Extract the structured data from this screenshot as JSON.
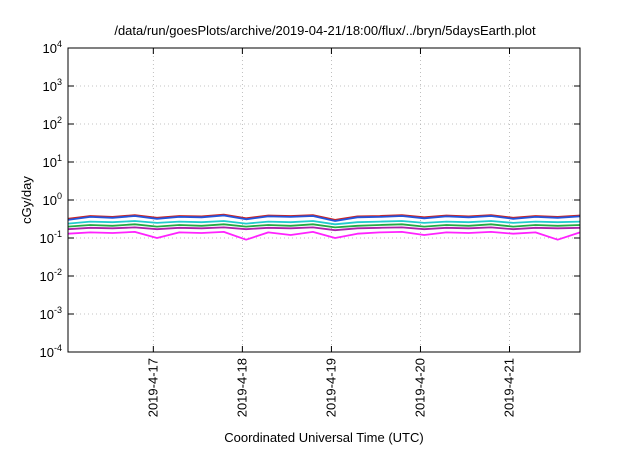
{
  "chart_data": {
    "type": "line",
    "title": "/data/run/goesPlots/archive/2019-04-21/18:00/flux/../bryn/5daysEarth.plot",
    "xlabel": "Coordinated Universal Time (UTC)",
    "ylabel": "cGy/day",
    "y_scale": "log",
    "ylim": [
      0.0001,
      10000
    ],
    "xlim": [
      "2019-04-16 01:00",
      "2019-04-21 19:00"
    ],
    "grid": true,
    "x_ticks": [
      {
        "date": "2019-04-17",
        "label": "2019-4-17"
      },
      {
        "date": "2019-04-18",
        "label": "2019-4-18"
      },
      {
        "date": "2019-04-19",
        "label": "2019-4-19"
      },
      {
        "date": "2019-04-20",
        "label": "2019-4-20"
      },
      {
        "date": "2019-04-21",
        "label": "2019-4-21"
      }
    ],
    "y_ticks": [
      {
        "value": 0.0001,
        "base": "10",
        "exp": "-4"
      },
      {
        "value": 0.001,
        "base": "10",
        "exp": "-3"
      },
      {
        "value": 0.01,
        "base": "10",
        "exp": "-2"
      },
      {
        "value": 0.1,
        "base": "10",
        "exp": "-1"
      },
      {
        "value": 1,
        "base": "10",
        "exp": "0"
      },
      {
        "value": 10,
        "base": "10",
        "exp": "1"
      },
      {
        "value": 100,
        "base": "10",
        "exp": "2"
      },
      {
        "value": 1000,
        "base": "10",
        "exp": "3"
      },
      {
        "value": 10000,
        "base": "10",
        "exp": "4"
      }
    ],
    "x": [
      "2019-04-16 01:00",
      "2019-04-16 07:00",
      "2019-04-16 13:00",
      "2019-04-16 19:00",
      "2019-04-17 01:00",
      "2019-04-17 07:00",
      "2019-04-17 13:00",
      "2019-04-17 19:00",
      "2019-04-18 01:00",
      "2019-04-18 07:00",
      "2019-04-18 13:00",
      "2019-04-18 19:00",
      "2019-04-19 01:00",
      "2019-04-19 07:00",
      "2019-04-19 13:00",
      "2019-04-19 19:00",
      "2019-04-20 01:00",
      "2019-04-20 07:00",
      "2019-04-20 13:00",
      "2019-04-20 19:00",
      "2019-04-21 01:00",
      "2019-04-21 07:00",
      "2019-04-21 13:00",
      "2019-04-21 19:00"
    ],
    "series": [
      {
        "color": "#cc2222",
        "values": [
          0.32,
          0.38,
          0.36,
          0.4,
          0.34,
          0.38,
          0.37,
          0.41,
          0.33,
          0.39,
          0.38,
          0.4,
          0.3,
          0.37,
          0.38,
          0.4,
          0.35,
          0.39,
          0.37,
          0.4,
          0.34,
          0.38,
          0.36,
          0.39
        ]
      },
      {
        "color": "#2255dd",
        "values": [
          0.3,
          0.36,
          0.34,
          0.38,
          0.32,
          0.36,
          0.35,
          0.39,
          0.31,
          0.37,
          0.36,
          0.38,
          0.28,
          0.35,
          0.36,
          0.38,
          0.33,
          0.37,
          0.35,
          0.38,
          0.32,
          0.36,
          0.34,
          0.37
        ]
      },
      {
        "color": "#22cccc",
        "values": [
          0.24,
          0.27,
          0.26,
          0.28,
          0.25,
          0.27,
          0.26,
          0.28,
          0.24,
          0.27,
          0.26,
          0.28,
          0.23,
          0.26,
          0.27,
          0.28,
          0.25,
          0.27,
          0.26,
          0.28,
          0.25,
          0.27,
          0.26,
          0.27
        ]
      },
      {
        "color": "#22aa44",
        "values": [
          0.2,
          0.22,
          0.21,
          0.23,
          0.2,
          0.22,
          0.21,
          0.23,
          0.2,
          0.22,
          0.21,
          0.23,
          0.19,
          0.21,
          0.22,
          0.23,
          0.2,
          0.22,
          0.21,
          0.23,
          0.2,
          0.22,
          0.21,
          0.22
        ]
      },
      {
        "color": "#aa22aa",
        "values": [
          0.17,
          0.185,
          0.18,
          0.19,
          0.17,
          0.185,
          0.18,
          0.19,
          0.17,
          0.185,
          0.18,
          0.19,
          0.16,
          0.18,
          0.185,
          0.19,
          0.17,
          0.185,
          0.18,
          0.19,
          0.17,
          0.185,
          0.18,
          0.185
        ]
      },
      {
        "color": "#ff22ff",
        "values": [
          0.13,
          0.14,
          0.135,
          0.145,
          0.1,
          0.14,
          0.135,
          0.145,
          0.09,
          0.14,
          0.12,
          0.145,
          0.1,
          0.13,
          0.14,
          0.145,
          0.12,
          0.14,
          0.135,
          0.145,
          0.13,
          0.14,
          0.09,
          0.14
        ]
      }
    ]
  }
}
